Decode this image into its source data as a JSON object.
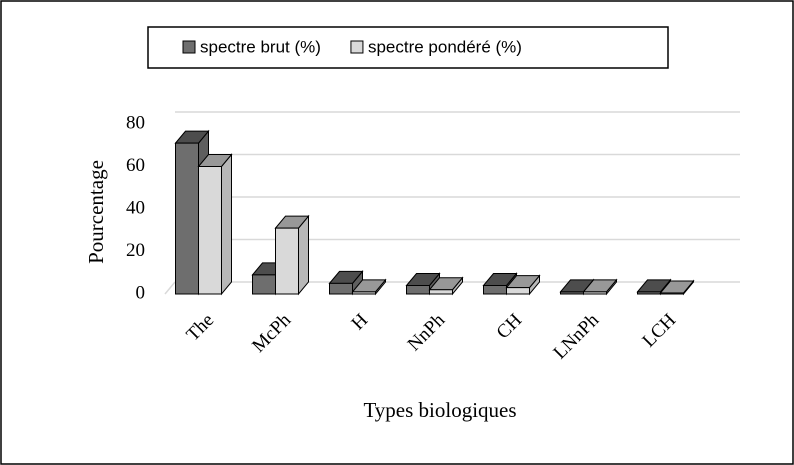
{
  "chart_data": {
    "type": "bar3d",
    "categories": [
      "The",
      "McPh",
      "H",
      "NnPh",
      "CH",
      "LNnPh",
      "LCH"
    ],
    "series": [
      {
        "name": "spectre brut (%)",
        "color": "#6e6e6e",
        "values": [
          71,
          9,
          5,
          4,
          4,
          1,
          1
        ]
      },
      {
        "name": "spectre pondéré (%)",
        "color": "#d9d9d9",
        "values": [
          60,
          31,
          1,
          2,
          3,
          1,
          0.5
        ]
      }
    ],
    "ylim": [
      0,
      80
    ],
    "yticks": [
      0,
      20,
      40,
      60,
      80
    ],
    "grid": true,
    "y_label": "Pourcentage",
    "x_label": "Types biologiques",
    "legend": "top"
  }
}
